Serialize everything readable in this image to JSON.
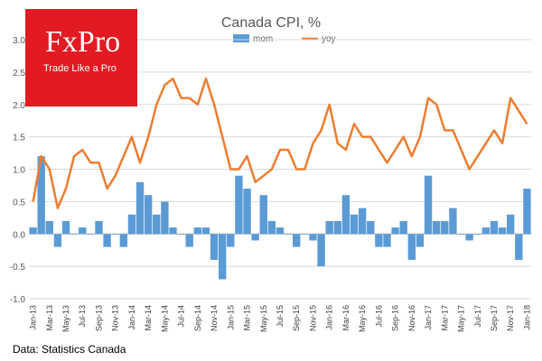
{
  "logo": {
    "name": "FxPro",
    "tagline": "Trade Like a Pro"
  },
  "source_note": "Data: Statistics Canada",
  "colors": {
    "mom": "#5b9bd5",
    "yoy": "#ed7d31",
    "grid": "#d9d9d9",
    "title": "#595959"
  },
  "chart_data": {
    "type": "bar",
    "title": "Canada CPI, %",
    "xlabel": "",
    "ylabel": "",
    "ylim": [
      -1.0,
      3.0
    ],
    "yticks": [
      "3.0",
      "2.5",
      "2.0",
      "1.5",
      "1.0",
      "0.5",
      "0.0",
      "-0.5",
      "-1.0"
    ],
    "grid": true,
    "legend": "top-center",
    "x_tick_labels": [
      "Jan-13",
      "Mar-13",
      "May-13",
      "Jul-13",
      "Sep-13",
      "Nov-13",
      "Jan-14",
      "Mar-14",
      "May-14",
      "Jul-14",
      "Sep-14",
      "Nov-14",
      "Jan-15",
      "Mar-15",
      "May-15",
      "Jul-15",
      "Sep-15",
      "Nov-15",
      "Jan-16",
      "Mar-16",
      "May-16",
      "Jul-16",
      "Sep-16",
      "Nov-16",
      "Jan-17",
      "Mar-17",
      "May-17",
      "Jul-17",
      "Sep-17",
      "Nov-17",
      "Jan-18"
    ],
    "series": [
      {
        "name": "mom",
        "type": "bar",
        "values": [
          0.1,
          1.2,
          0.2,
          -0.2,
          0.2,
          0.0,
          0.1,
          0.0,
          0.2,
          -0.2,
          0.0,
          -0.2,
          0.3,
          0.8,
          0.6,
          0.3,
          0.5,
          0.1,
          0.0,
          -0.2,
          0.1,
          0.1,
          -0.4,
          -0.7,
          -0.2,
          0.9,
          0.7,
          -0.1,
          0.6,
          0.2,
          0.1,
          0.0,
          -0.2,
          0.0,
          -0.1,
          -0.5,
          0.2,
          0.2,
          0.6,
          0.3,
          0.4,
          0.2,
          -0.2,
          -0.2,
          0.1,
          0.2,
          -0.4,
          -0.2,
          0.9,
          0.2,
          0.2,
          0.4,
          0.0,
          -0.1,
          0.0,
          0.1,
          0.2,
          0.1,
          0.3,
          -0.4,
          0.7
        ]
      },
      {
        "name": "yoy",
        "type": "line",
        "values": [
          0.5,
          1.2,
          1.0,
          0.4,
          0.7,
          1.2,
          1.3,
          1.1,
          1.1,
          0.7,
          0.9,
          1.2,
          1.5,
          1.1,
          1.5,
          2.0,
          2.3,
          2.4,
          2.1,
          2.1,
          2.0,
          2.4,
          2.0,
          1.5,
          1.0,
          1.0,
          1.2,
          0.8,
          0.9,
          1.0,
          1.3,
          1.3,
          1.0,
          1.0,
          1.4,
          1.6,
          2.0,
          1.4,
          1.3,
          1.7,
          1.5,
          1.5,
          1.3,
          1.1,
          1.3,
          1.5,
          1.2,
          1.5,
          2.1,
          2.0,
          1.6,
          1.6,
          1.3,
          1.0,
          1.2,
          1.4,
          1.6,
          1.4,
          2.1,
          1.9,
          1.7
        ]
      }
    ]
  }
}
